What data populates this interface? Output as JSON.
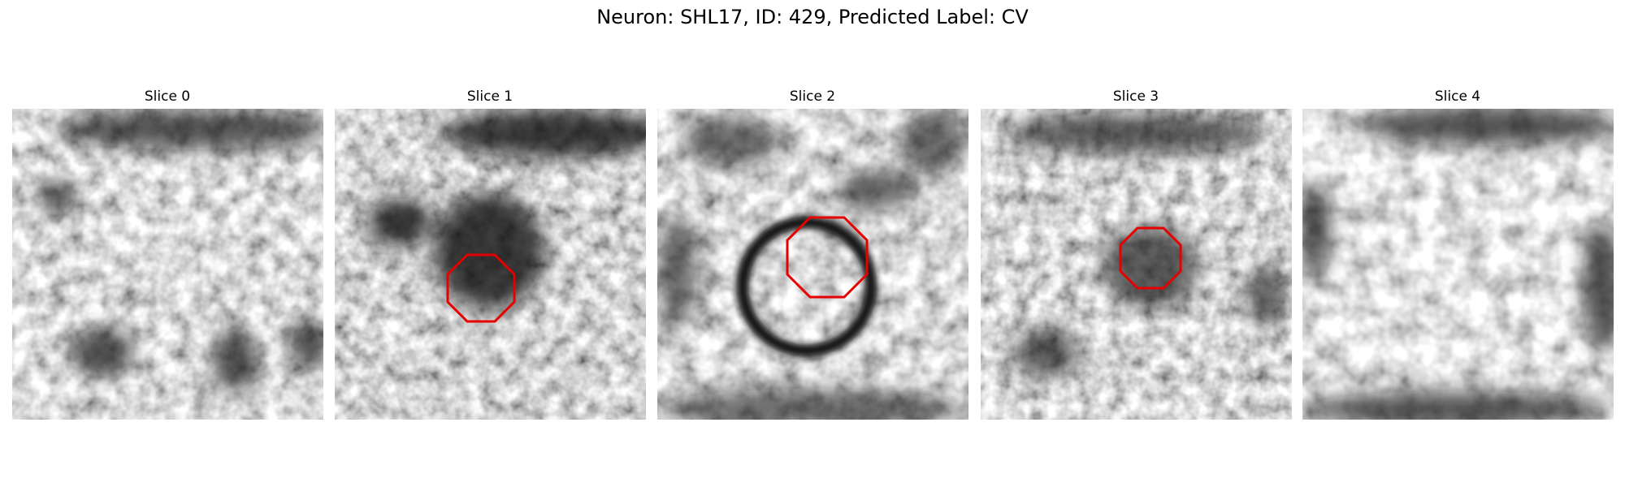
{
  "title": "Neuron: SHL17, ID: 429, Predicted Label: CV",
  "panels": [
    {
      "title": "Slice 0"
    },
    {
      "title": "Slice 1"
    },
    {
      "title": "Slice 2"
    },
    {
      "title": "Slice 3"
    },
    {
      "title": "Slice 4"
    }
  ]
}
